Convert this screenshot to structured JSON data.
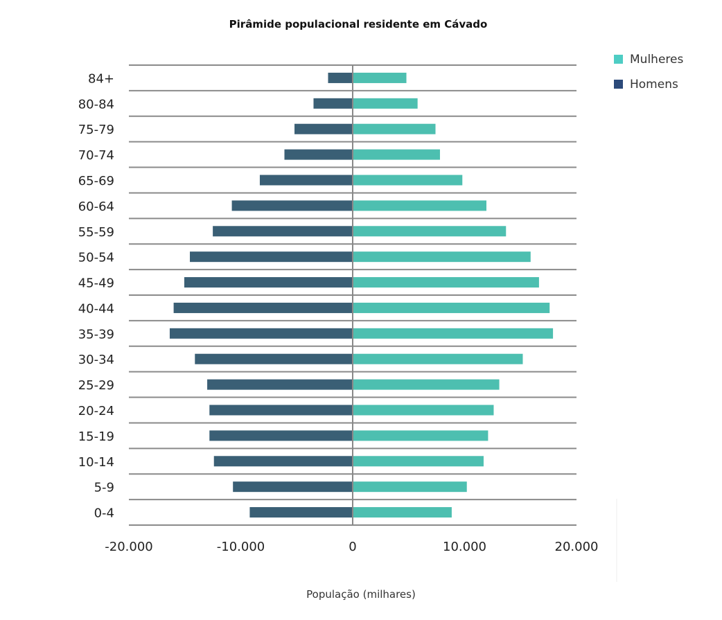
{
  "chart_data": {
    "type": "bar",
    "orientation": "horizontal",
    "title": "Pirâmide populacional residente em Cávado",
    "xlabel": "População (milhares)",
    "ylabel": "",
    "xlim": [
      -20000,
      20000
    ],
    "xticks": [
      -20000,
      -10000,
      0,
      10000,
      20000
    ],
    "xtick_labels": [
      "-20.000",
      "-10.000",
      "0",
      "10.000",
      "20.000"
    ],
    "grid": true,
    "legend_position": "top-right",
    "categories": [
      "84+",
      "80-84",
      "75-79",
      "70-74",
      "65-69",
      "60-64",
      "55-59",
      "50-54",
      "45-49",
      "40-44",
      "35-39",
      "30-34",
      "25-29",
      "20-24",
      "15-19",
      "10-14",
      "5-9",
      "0-4"
    ],
    "series": [
      {
        "name": "Mulheres",
        "color": "#4dbfb0",
        "legend_color": "#4ecdc4",
        "values": [
          4800,
          5800,
          7400,
          7800,
          9800,
          11950,
          13700,
          15900,
          16650,
          17600,
          17900,
          15200,
          13100,
          12600,
          12100,
          11700,
          10200,
          8850
        ]
      },
      {
        "name": "Homens",
        "color": "#3a5f75",
        "legend_color": "#2c4a7a",
        "values": [
          -2200,
          -3500,
          -5200,
          -6100,
          -8300,
          -10800,
          -12500,
          -14550,
          -15050,
          -16000,
          -16350,
          -14100,
          -13000,
          -12800,
          -12800,
          -12400,
          -10700,
          -9200
        ]
      }
    ]
  }
}
